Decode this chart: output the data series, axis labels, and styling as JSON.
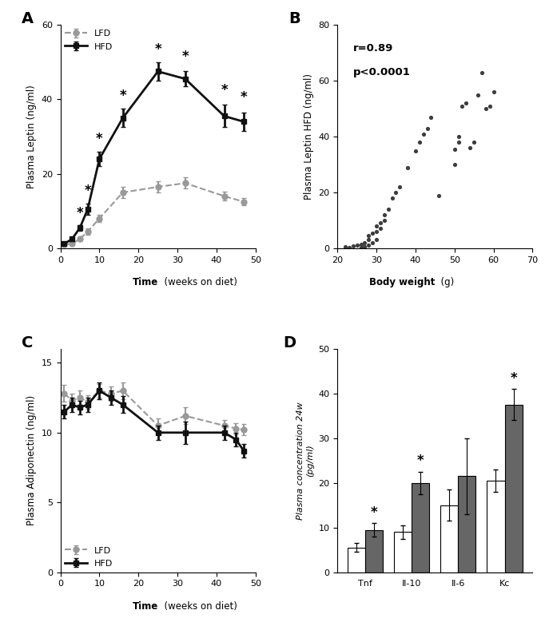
{
  "panel_A": {
    "lfd_x": [
      1,
      3,
      5,
      7,
      10,
      16,
      25,
      32,
      42,
      47
    ],
    "lfd_y": [
      1.0,
      1.2,
      2.5,
      4.5,
      8.0,
      15.0,
      16.5,
      17.5,
      14.0,
      12.5
    ],
    "lfd_err": [
      0.3,
      0.4,
      0.5,
      0.8,
      1.0,
      1.5,
      1.5,
      1.5,
      1.2,
      1.0
    ],
    "hfd_x": [
      1,
      3,
      5,
      7,
      10,
      16,
      25,
      32,
      42,
      47
    ],
    "hfd_y": [
      1.2,
      2.5,
      5.5,
      10.5,
      24.0,
      35.0,
      47.5,
      45.5,
      35.5,
      34.0
    ],
    "hfd_err": [
      0.4,
      0.6,
      0.8,
      1.5,
      2.0,
      2.5,
      2.5,
      2.0,
      3.0,
      2.5
    ],
    "sig_x": [
      5,
      7,
      10,
      16,
      25,
      32,
      42,
      47
    ],
    "sig_y": [
      7.5,
      13.5,
      27.5,
      39.0,
      51.5,
      49.5,
      40.5,
      38.5
    ],
    "ylabel": "Plasma Leptin (ng/ml)",
    "ylim": [
      0,
      60
    ],
    "xlim": [
      0,
      50
    ],
    "xticks": [
      0,
      10,
      20,
      30,
      40,
      50
    ],
    "yticks": [
      0,
      20,
      40,
      60
    ]
  },
  "panel_B": {
    "scatter_x": [
      22,
      23,
      24,
      25,
      26,
      26,
      27,
      27,
      28,
      28,
      28,
      29,
      29,
      30,
      30,
      30,
      31,
      31,
      32,
      32,
      33,
      34,
      35,
      36,
      38,
      40,
      41,
      42,
      43,
      44,
      46,
      50,
      50,
      51,
      51,
      52,
      53,
      54,
      55,
      56,
      57,
      58,
      59,
      60
    ],
    "scatter_y": [
      0.5,
      0.3,
      0.8,
      1.0,
      0.2,
      1.5,
      0.5,
      2.0,
      1.0,
      3.0,
      4.5,
      2.0,
      5.5,
      3.0,
      6.0,
      8.0,
      7.0,
      9.0,
      10.0,
      12.0,
      14.0,
      18.0,
      20.0,
      22.0,
      29.0,
      35.0,
      38.0,
      41.0,
      43.0,
      47.0,
      19.0,
      30.0,
      35.5,
      38.0,
      40.0,
      51.0,
      52.0,
      36.0,
      38.0,
      55.0,
      63.0,
      50.0,
      51.0,
      56.0
    ],
    "ylabel": "Plasma Leptin HFD (ng/ml)",
    "xlabel": "Body weight (g)",
    "ylim": [
      0,
      80
    ],
    "xlim": [
      20,
      70
    ],
    "xticks": [
      20,
      30,
      40,
      50,
      60,
      70
    ],
    "yticks": [
      0,
      20,
      40,
      60,
      80
    ]
  },
  "panel_C": {
    "lfd_x": [
      1,
      3,
      5,
      7,
      10,
      13,
      16,
      25,
      32,
      42,
      45,
      47
    ],
    "lfd_y": [
      12.8,
      12.3,
      12.5,
      12.2,
      13.0,
      12.8,
      13.0,
      10.5,
      11.2,
      10.5,
      10.3,
      10.2
    ],
    "lfd_err": [
      0.6,
      0.5,
      0.5,
      0.5,
      0.5,
      0.5,
      0.6,
      0.5,
      0.6,
      0.4,
      0.4,
      0.4
    ],
    "hfd_x": [
      1,
      3,
      5,
      7,
      10,
      13,
      16,
      25,
      32,
      42,
      45,
      47
    ],
    "hfd_y": [
      11.5,
      12.0,
      11.8,
      12.0,
      13.0,
      12.5,
      12.0,
      10.0,
      10.0,
      10.0,
      9.5,
      8.7
    ],
    "hfd_err": [
      0.5,
      0.5,
      0.5,
      0.5,
      0.6,
      0.5,
      0.6,
      0.5,
      0.8,
      0.5,
      0.5,
      0.5
    ],
    "ylabel": "Plasma Adiponectin (ng/ml)",
    "ylim": [
      0,
      16
    ],
    "xlim": [
      0,
      50
    ],
    "xticks": [
      0,
      10,
      20,
      30,
      40,
      50
    ],
    "yticks": [
      0,
      5,
      10,
      15
    ]
  },
  "panel_D": {
    "categories": [
      "Tnf",
      "Il-10",
      "Il-6",
      "Kc"
    ],
    "lfd_values": [
      5.5,
      9.0,
      15.0,
      20.5
    ],
    "lfd_err": [
      1.0,
      1.5,
      3.5,
      2.5
    ],
    "hfd_values": [
      9.5,
      20.0,
      21.5,
      37.5
    ],
    "hfd_err": [
      1.5,
      2.5,
      8.5,
      3.5
    ],
    "sig_indices": [
      0,
      1,
      3
    ],
    "ylabel_top": "Plasma concentration 24w",
    "ylabel_bot": "(pg/ml)",
    "ylim": [
      0,
      50
    ],
    "yticks": [
      0,
      10,
      20,
      30,
      40,
      50
    ],
    "lfd_color": "white",
    "hfd_color": "#666666"
  },
  "colors": {
    "lfd_line": "#999999",
    "hfd_line": "#111111",
    "scatter_dot": "#3d3d3d"
  }
}
